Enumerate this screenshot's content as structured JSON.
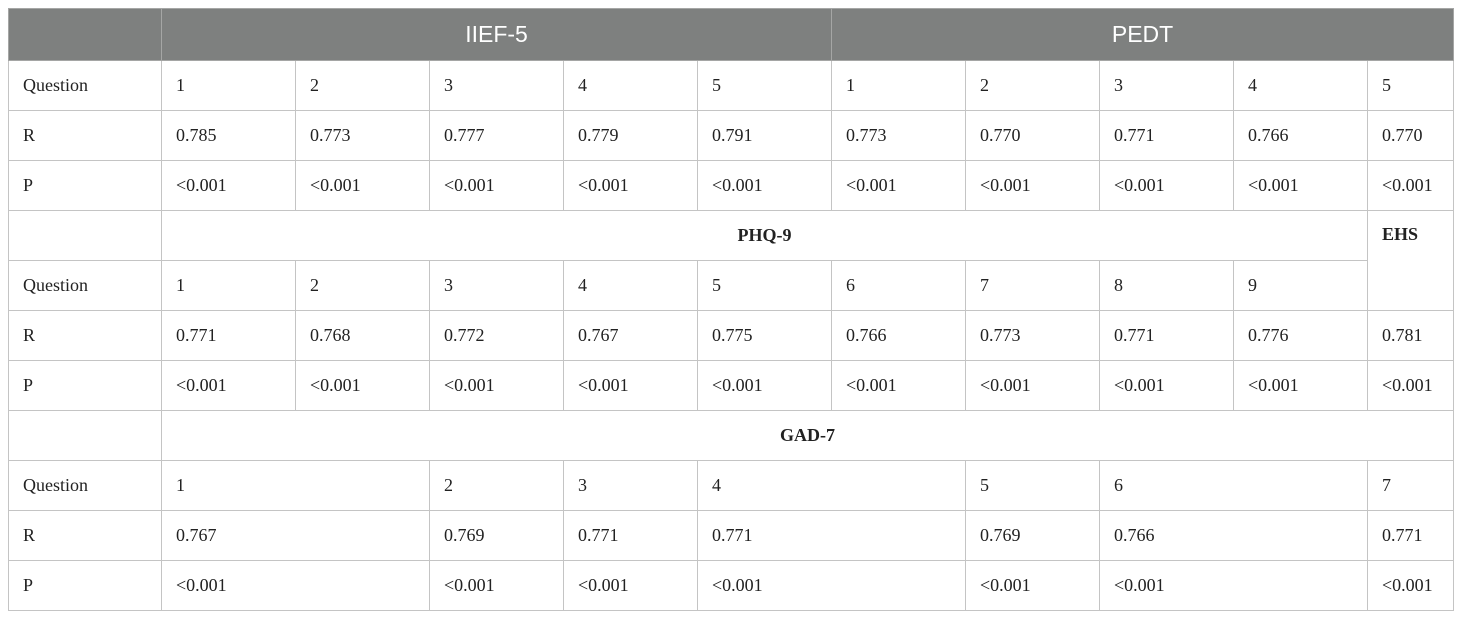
{
  "header": {
    "blank": "",
    "iief5": "IIEF-5",
    "pedt": "PEDT"
  },
  "labels": {
    "question": "Question",
    "r": "R",
    "p": "P"
  },
  "section1": {
    "questions": [
      "1",
      "2",
      "3",
      "4",
      "5",
      "1",
      "2",
      "3",
      "4",
      "5"
    ],
    "r": [
      "0.785",
      "0.773",
      "0.777",
      "0.779",
      "0.791",
      "0.773",
      "0.770",
      "0.771",
      "0.766",
      "0.770"
    ],
    "p": [
      "<0.001",
      "<0.001",
      "<0.001",
      "<0.001",
      "<0.001",
      "<0.001",
      "<0.001",
      "<0.001",
      "<0.001",
      "<0.001"
    ]
  },
  "section2": {
    "title": "PHQ-9",
    "ehs": "EHS",
    "questions": [
      "1",
      "2",
      "3",
      "4",
      "5",
      "6",
      "7",
      "8",
      "9"
    ],
    "r": [
      "0.771",
      "0.768",
      "0.772",
      "0.767",
      "0.775",
      "0.766",
      "0.773",
      "0.771",
      "0.776",
      "0.781"
    ],
    "p": [
      "<0.001",
      "<0.001",
      "<0.001",
      "<0.001",
      "<0.001",
      "<0.001",
      "<0.001",
      "<0.001",
      "<0.001",
      "<0.001"
    ]
  },
  "section3": {
    "title": "GAD-7",
    "questions": [
      "1",
      "2",
      "3",
      "4",
      "5",
      "6",
      "7"
    ],
    "r": [
      "0.767",
      "0.769",
      "0.771",
      "0.771",
      "0.769",
      "0.766",
      "0.771"
    ],
    "p": [
      "<0.001",
      "<0.001",
      "<0.001",
      "<0.001",
      "<0.001",
      "<0.001",
      "<0.001"
    ]
  }
}
